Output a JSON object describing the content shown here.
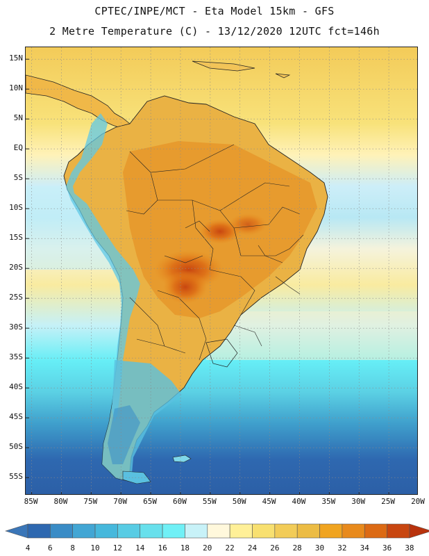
{
  "title": {
    "line1": "CPTEC/INPE/MCT -  Eta Model 15km - GFS",
    "line2": "2 Metre Temperature (C) - 13/12/2020 12UTC fct=146h"
  },
  "map": {
    "lat_labels": [
      "15N",
      "10N",
      "5N",
      "EQ",
      "5S",
      "10S",
      "15S",
      "20S",
      "25S",
      "30S",
      "35S",
      "40S",
      "45S",
      "50S",
      "55S"
    ],
    "lon_labels": [
      "85W",
      "80W",
      "75W",
      "70W",
      "65W",
      "60W",
      "55W",
      "50W",
      "45W",
      "40W",
      "35W",
      "30W",
      "25W",
      "20W"
    ],
    "lat_range": [
      -58,
      17
    ],
    "lon_range": [
      -86,
      -20
    ],
    "gridline_interval_deg": 5
  },
  "colorbar": {
    "labels": [
      "4",
      "6",
      "8",
      "10",
      "12",
      "14",
      "16",
      "18",
      "20",
      "22",
      "24",
      "26",
      "28",
      "30",
      "32",
      "34",
      "36",
      "38"
    ],
    "colors": [
      "#3a76b8",
      "#2e68b0",
      "#3a8cc6",
      "#42a6d4",
      "#46b8dc",
      "#58cce4",
      "#68e0ec",
      "#70f0f6",
      "#c8f2f8",
      "#fff8dc",
      "#fff098",
      "#f8e070",
      "#f2cc58",
      "#ecbc44",
      "#f0a420",
      "#e88a1c",
      "#dc6a14",
      "#c84610",
      "#b8320c"
    ]
  }
}
